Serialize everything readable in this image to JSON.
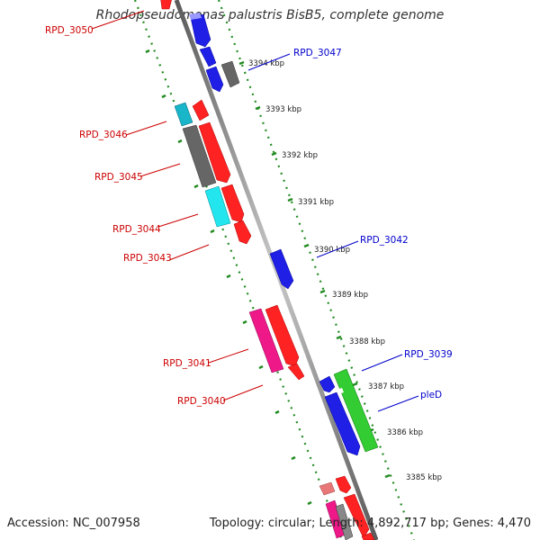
{
  "title": "Rhodopseudomonas palustris BisB5, complete genome",
  "footer": {
    "accession": "Accession: NC_007958",
    "summary": "Topology: circular; Length: 4,892,717 bp; Genes: 4,470"
  },
  "colors": {
    "backbone": "#8a8a8a",
    "tick": "#228b22",
    "label_red": "#cc0000",
    "label_blue": "#0000cc",
    "kbp_text": "#222222"
  },
  "kbp_marks": [
    "3394 kbp",
    "3393 kbp",
    "3392 kbp",
    "3391 kbp",
    "3390 kbp",
    "3389 kbp",
    "3388 kbp",
    "3387 kbp",
    "3386 kbp",
    "3385 kbp"
  ],
  "gene_labels": [
    {
      "text": "RPD_3050",
      "color": "red"
    },
    {
      "text": "RPD_3047",
      "color": "blue"
    },
    {
      "text": "RPD_3046",
      "color": "red"
    },
    {
      "text": "RPD_3045",
      "color": "red"
    },
    {
      "text": "RPD_3044",
      "color": "red"
    },
    {
      "text": "RPD_3043",
      "color": "red"
    },
    {
      "text": "RPD_3042",
      "color": "blue"
    },
    {
      "text": "RPD_3041",
      "color": "red"
    },
    {
      "text": "RPD_3040",
      "color": "red"
    },
    {
      "text": "RPD_3039",
      "color": "blue"
    },
    {
      "text": "pleD",
      "color": "blue"
    }
  ]
}
